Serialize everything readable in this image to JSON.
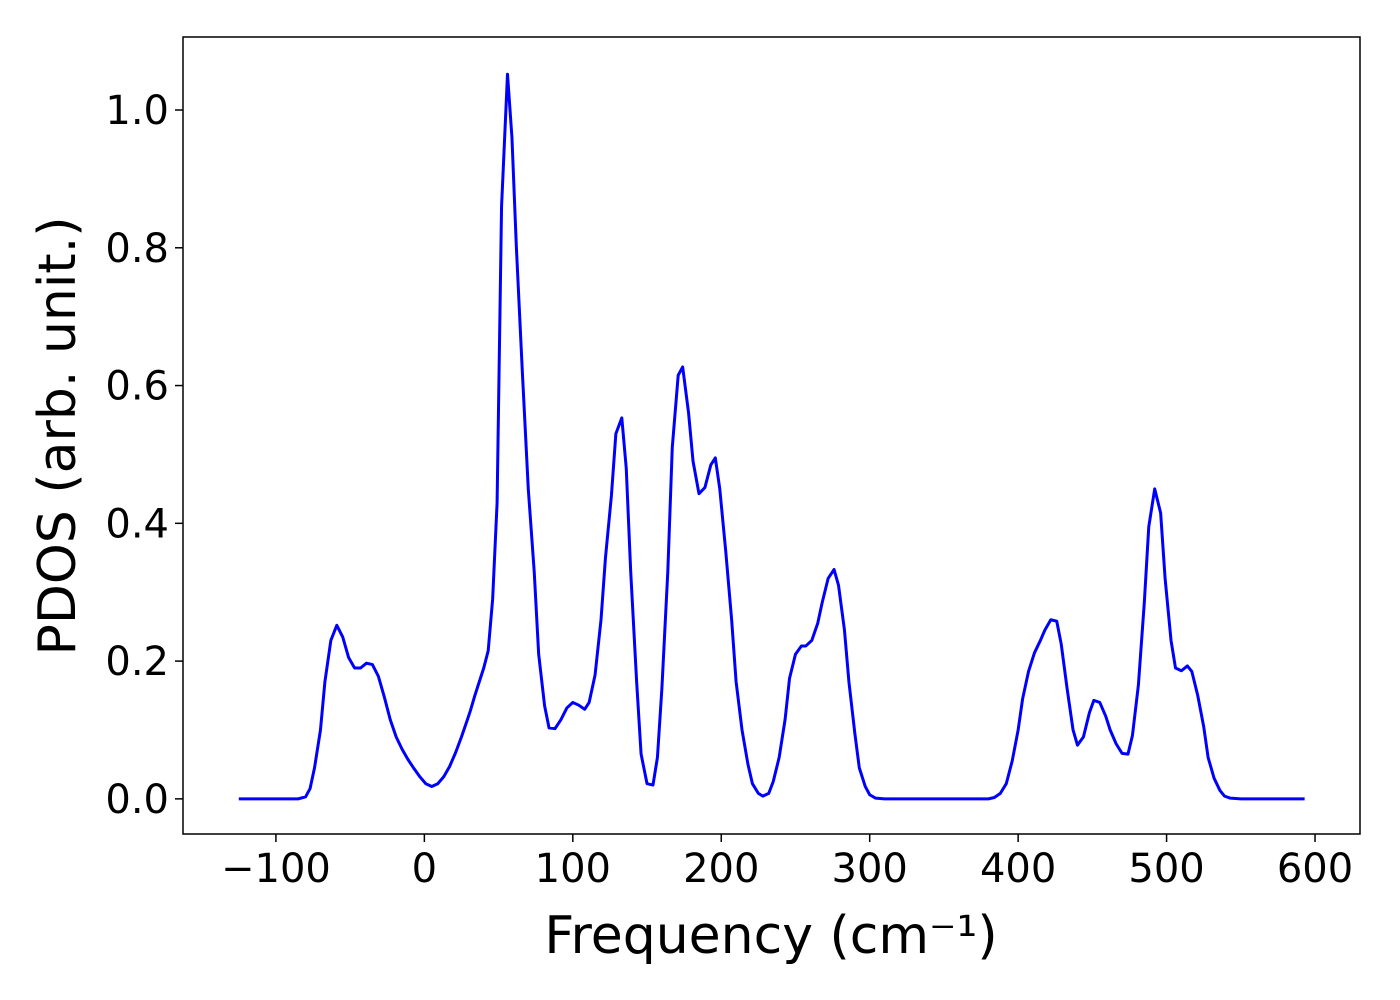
{
  "chart_data": {
    "type": "line",
    "xlabel": "Frequency (cm⁻¹)",
    "ylabel": "PDOS (arb. unit.)",
    "xlim": [
      -162.6,
      630.3
    ],
    "ylim": [
      -0.051,
      1.106
    ],
    "xticks": [
      {
        "value": -100,
        "label": "−100"
      },
      0,
      100,
      200,
      300,
      400,
      500,
      600
    ],
    "yticks": [
      {
        "value": 0,
        "label": "0.0"
      },
      {
        "value": 0.2,
        "label": "0.2"
      },
      {
        "value": 0.4,
        "label": "0.4"
      },
      {
        "value": 0.6,
        "label": "0.6"
      },
      {
        "value": 0.8,
        "label": "0.8"
      },
      {
        "value": 1,
        "label": "1.0"
      }
    ],
    "grid": false,
    "x": [
      -125,
      -85,
      -80,
      -77,
      -74,
      -70,
      -67,
      -63,
      -59,
      -55,
      -51,
      -47,
      -43,
      -39,
      -35,
      -31,
      -27,
      -23,
      -19,
      -15,
      -11,
      -7,
      -3,
      1,
      5,
      9,
      13,
      17,
      21,
      25,
      29,
      31,
      34,
      37,
      40,
      43,
      46,
      49,
      52,
      56,
      59,
      62,
      66,
      70,
      74,
      77,
      81,
      84,
      88,
      92,
      96,
      100,
      104,
      108,
      111,
      115,
      119,
      122,
      126,
      129,
      133,
      136,
      139,
      143,
      146,
      150,
      154,
      157,
      160,
      164,
      167,
      171,
      174,
      178,
      181,
      185,
      189,
      193,
      196,
      199,
      203,
      207,
      210,
      214,
      218,
      221,
      225,
      228,
      232,
      235,
      239,
      243,
      246,
      250,
      254,
      257,
      261,
      265,
      268,
      272,
      276,
      279,
      283,
      286,
      290,
      293,
      297,
      300,
      304,
      310,
      380,
      384,
      388,
      392,
      396,
      400,
      403,
      407,
      411,
      415,
      418,
      422,
      426,
      429,
      433,
      437,
      440,
      444,
      448,
      451,
      455,
      459,
      462,
      466,
      470,
      474,
      477,
      481,
      485,
      488,
      492,
      496,
      499,
      503,
      506,
      510,
      514,
      517,
      521,
      525,
      528,
      532,
      536,
      539,
      543,
      550,
      593
    ],
    "series": [
      {
        "name": "PDOS",
        "color": "#0000ff",
        "values": [
          0,
          0,
          0.003,
          0.015,
          0.045,
          0.1,
          0.17,
          0.23,
          0.252,
          0.235,
          0.205,
          0.19,
          0.19,
          0.197,
          0.195,
          0.178,
          0.148,
          0.115,
          0.09,
          0.072,
          0.057,
          0.044,
          0.032,
          0.022,
          0.018,
          0.022,
          0.032,
          0.047,
          0.067,
          0.09,
          0.115,
          0.128,
          0.15,
          0.17,
          0.19,
          0.215,
          0.29,
          0.43,
          0.86,
          1.052,
          0.96,
          0.8,
          0.62,
          0.45,
          0.33,
          0.21,
          0.135,
          0.103,
          0.102,
          0.115,
          0.132,
          0.14,
          0.136,
          0.13,
          0.14,
          0.18,
          0.26,
          0.35,
          0.44,
          0.53,
          0.553,
          0.48,
          0.33,
          0.17,
          0.065,
          0.022,
          0.02,
          0.06,
          0.16,
          0.33,
          0.51,
          0.615,
          0.627,
          0.56,
          0.49,
          0.443,
          0.452,
          0.485,
          0.495,
          0.45,
          0.36,
          0.26,
          0.17,
          0.1,
          0.05,
          0.022,
          0.008,
          0.004,
          0.008,
          0.025,
          0.06,
          0.115,
          0.175,
          0.21,
          0.222,
          0.222,
          0.23,
          0.255,
          0.285,
          0.32,
          0.333,
          0.31,
          0.245,
          0.17,
          0.095,
          0.045,
          0.018,
          0.006,
          0.001,
          0,
          0,
          0.002,
          0.008,
          0.022,
          0.055,
          0.1,
          0.145,
          0.185,
          0.212,
          0.23,
          0.245,
          0.26,
          0.258,
          0.225,
          0.16,
          0.1,
          0.078,
          0.09,
          0.125,
          0.143,
          0.14,
          0.12,
          0.1,
          0.08,
          0.066,
          0.065,
          0.092,
          0.165,
          0.285,
          0.395,
          0.45,
          0.415,
          0.32,
          0.23,
          0.19,
          0.186,
          0.193,
          0.185,
          0.15,
          0.105,
          0.06,
          0.03,
          0.012,
          0.004,
          0.001,
          0,
          0
        ]
      }
    ]
  }
}
